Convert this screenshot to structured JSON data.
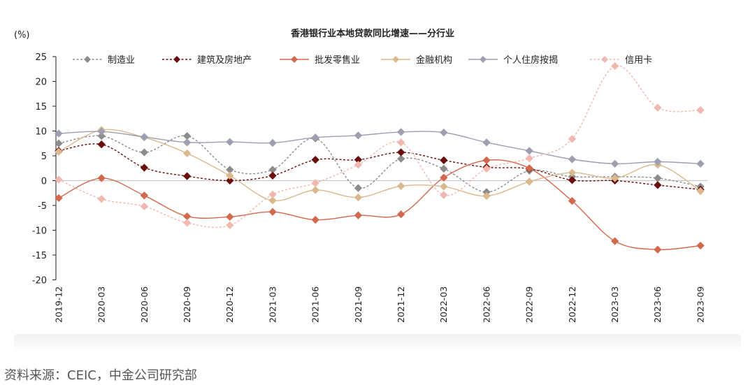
{
  "colors": {
    "text": "#222222",
    "axis": "#222222",
    "zero_line": "#c8c8c8"
  },
  "source_note": "资料来源：CEIC，中金公司研究部",
  "chart_data": {
    "type": "line",
    "title": "香港银行业本地贷款同比增速——分行业",
    "unit_label": "(%)",
    "ylim": [
      -20,
      25
    ],
    "yticks": [
      25,
      20,
      15,
      10,
      5,
      0,
      -5,
      -10,
      -15,
      -20
    ],
    "grid": false,
    "legend_position": "top",
    "categories": [
      "2019-12",
      "2020-03",
      "2020-06",
      "2020-09",
      "2020-12",
      "2021-03",
      "2021-06",
      "2021-09",
      "2021-12",
      "2022-03",
      "2022-06",
      "2022-09",
      "2022-12",
      "2023-03",
      "2023-06",
      "2023-09"
    ],
    "series": [
      {
        "name": "制造业",
        "color": "#8c8c8c",
        "dashed": true,
        "values": [
          7.5,
          9.0,
          5.7,
          9.0,
          2.2,
          2.2,
          8.5,
          -1.5,
          4.4,
          2.4,
          -2.3,
          2.0,
          0.8,
          0.8,
          0.5,
          -1.2
        ]
      },
      {
        "name": "建筑及房地产",
        "color": "#6a0d0d",
        "dashed": true,
        "values": [
          6.0,
          7.3,
          2.6,
          0.9,
          0.0,
          1.0,
          4.2,
          4.2,
          5.7,
          4.1,
          2.7,
          2.4,
          0.1,
          0.0,
          -0.9,
          -1.8
        ]
      },
      {
        "name": "批发零售业",
        "color": "#d2694e",
        "dashed": false,
        "values": [
          -3.5,
          0.5,
          -3.0,
          -7.2,
          -7.3,
          -6.3,
          -7.9,
          -7.0,
          -6.8,
          0.6,
          4.1,
          2.5,
          -4.1,
          -12.2,
          -13.9,
          -13.1
        ]
      },
      {
        "name": "金融机构",
        "color": "#d9b98d",
        "dashed": false,
        "values": [
          5.8,
          10.2,
          8.7,
          5.5,
          1.0,
          -4.0,
          -1.9,
          -3.4,
          -1.1,
          -1.2,
          -3.1,
          -0.2,
          1.6,
          0.5,
          3.2,
          -2.1
        ]
      },
      {
        "name": "个人住房按揭",
        "color": "#9d9fb1",
        "dashed": false,
        "values": [
          9.5,
          9.9,
          8.8,
          7.7,
          7.8,
          7.6,
          8.7,
          9.1,
          9.8,
          9.7,
          7.7,
          6.0,
          4.3,
          3.4,
          3.8,
          3.4
        ]
      },
      {
        "name": "信用卡",
        "color": "#f0b8ae",
        "dashed": true,
        "values": [
          0.2,
          -3.7,
          -5.2,
          -8.5,
          -9.0,
          -2.8,
          -0.5,
          3.2,
          7.7,
          -2.9,
          2.4,
          4.5,
          8.4,
          23.1,
          14.7,
          14.2
        ]
      }
    ]
  }
}
